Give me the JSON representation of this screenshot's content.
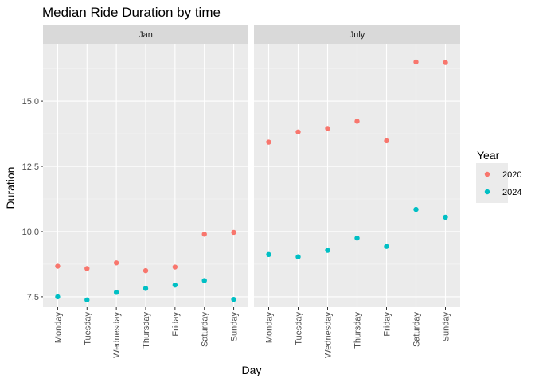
{
  "chart_data": {
    "type": "scatter",
    "title": "Median Ride Duration by time",
    "xlabel": "Day",
    "ylabel": "Duration",
    "categories": [
      "Monday",
      "Tuesday",
      "Wednesday",
      "Thursday",
      "Friday",
      "Saturday",
      "Sunday"
    ],
    "ylim": [
      7.1,
      17.2
    ],
    "yticks": [
      7.5,
      10.0,
      12.5,
      15.0
    ],
    "ytick_labels": [
      "7.5",
      "10.0",
      "12.5",
      "15.0"
    ],
    "grid": true,
    "legend": {
      "title": "Year",
      "position": "right"
    },
    "panels": [
      {
        "label": "Jan",
        "series": [
          {
            "name": "2020",
            "color": "#F8766D",
            "values": [
              8.67,
              8.58,
              8.8,
              8.5,
              8.64,
              9.9,
              9.97
            ]
          },
          {
            "name": "2024",
            "color": "#00BFC4",
            "values": [
              7.5,
              7.38,
              7.67,
              7.82,
              7.95,
              8.12,
              7.4
            ]
          }
        ]
      },
      {
        "label": "July",
        "series": [
          {
            "name": "2020",
            "color": "#F8766D",
            "values": [
              13.43,
              13.82,
              13.95,
              14.23,
              13.48,
              16.5,
              16.48
            ]
          },
          {
            "name": "2024",
            "color": "#00BFC4",
            "values": [
              9.12,
              9.03,
              9.28,
              9.75,
              9.43,
              10.85,
              10.55
            ]
          }
        ]
      }
    ]
  }
}
